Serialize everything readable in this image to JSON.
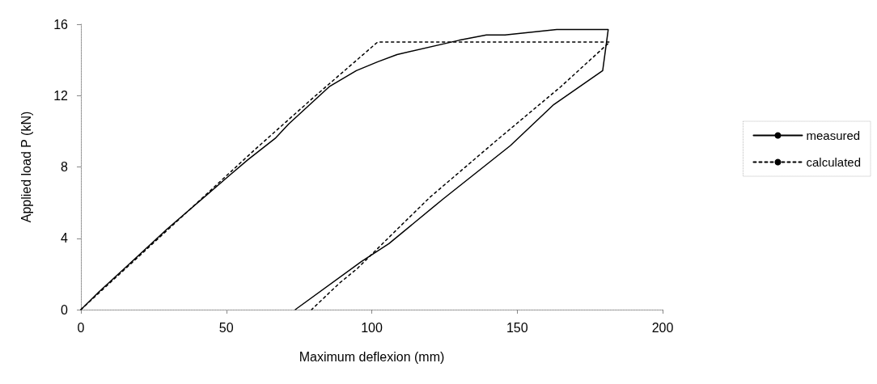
{
  "chart_data": {
    "type": "line",
    "xlabel": "Maximum deflexion (mm)",
    "ylabel": "Applied load P (kN)",
    "xlim": [
      0,
      200
    ],
    "xticks": [
      0,
      50,
      100,
      150,
      200
    ],
    "ylim": [
      0,
      16
    ],
    "yticks": [
      0,
      4,
      8,
      12,
      16
    ],
    "grid": false,
    "legend": "right",
    "marker": "none",
    "series": [
      {
        "name": "measured",
        "color": "#000000",
        "line_style": "solid",
        "x": [
          0,
          6.2,
          15.6,
          29.5,
          50.9,
          57.4,
          66.8,
          71.4,
          85.4,
          94.7,
          102.1,
          108.7,
          130,
          139.4,
          145.8,
          163.6,
          181.3,
          179.4,
          162.6,
          147.7,
          124.5,
          105.9,
          96.5,
          73.7
        ],
        "values": [
          0,
          1.0,
          2.4,
          4.5,
          7.5,
          8.4,
          9.6,
          10.4,
          12.5,
          13.4,
          13.9,
          14.3,
          15.1,
          15.4,
          15.4,
          15.7,
          15.7,
          13.4,
          11.5,
          9.2,
          6.2,
          3.7,
          2.7,
          0
        ]
      },
      {
        "name": "calculated",
        "color": "#000000",
        "line_style": "dotted",
        "x": [
          0,
          30,
          60,
          80,
          102,
          181.8,
          165,
          143,
          120,
          108.7,
          95,
          89,
          79.3
        ],
        "values": [
          0,
          4.5,
          9.0,
          11.9,
          15,
          15,
          12.5,
          9.5,
          6.3,
          4.5,
          2.3,
          1.5,
          0
        ]
      }
    ]
  }
}
